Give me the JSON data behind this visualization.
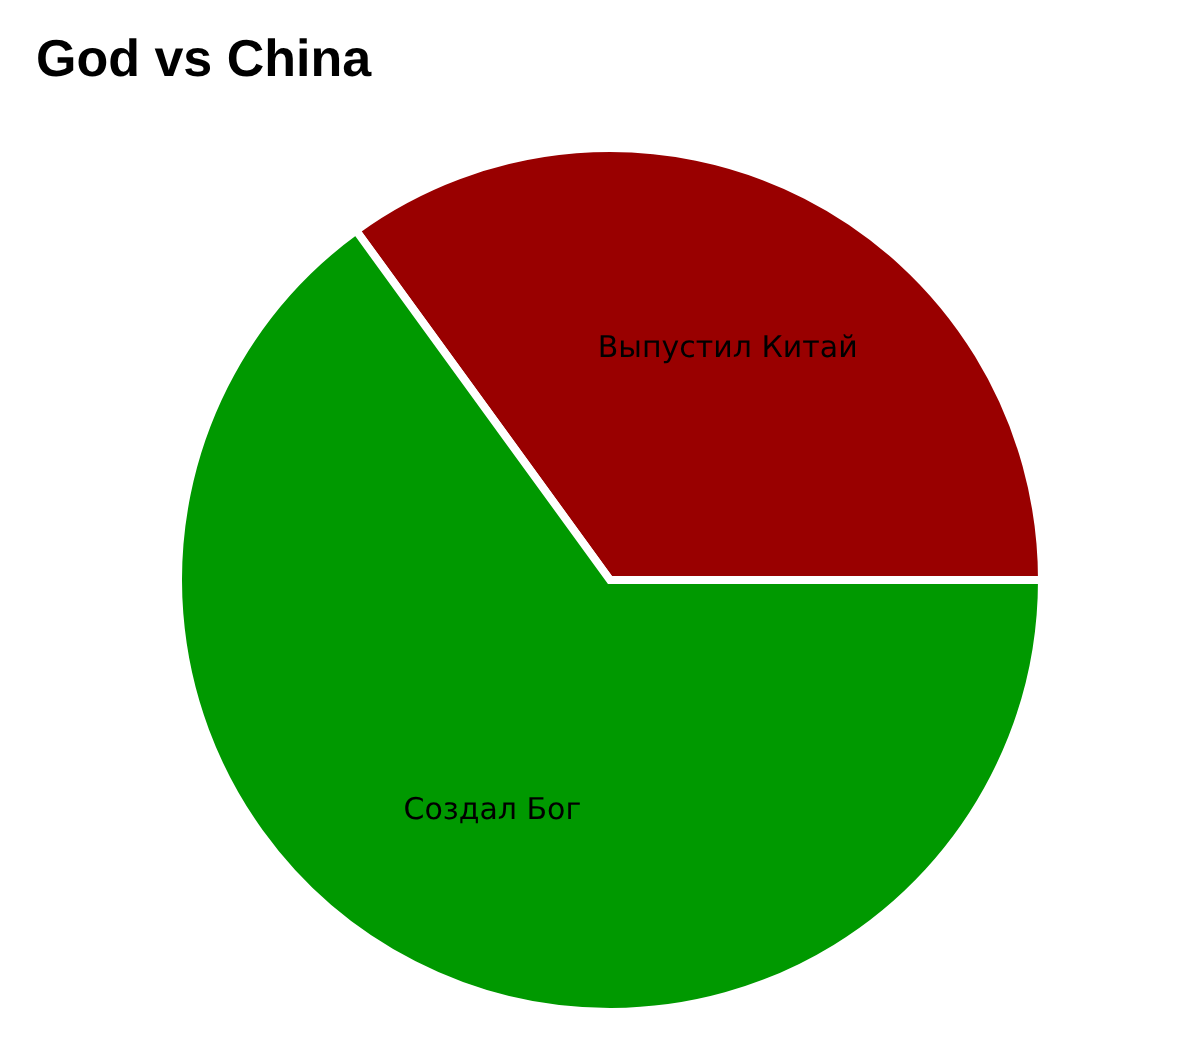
{
  "chart_data": {
    "type": "pie",
    "title": "God vs China",
    "categories": [
      "Выпустил Китай",
      "Создал Бог"
    ],
    "values": [
      35,
      65
    ],
    "colors": [
      "#990000",
      "#009900"
    ]
  }
}
